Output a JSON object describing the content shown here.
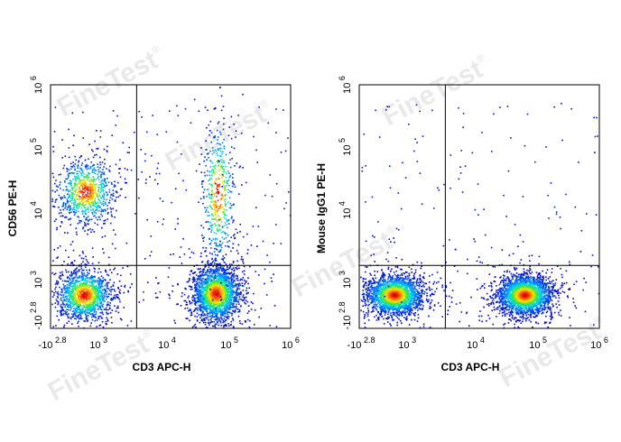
{
  "watermark": {
    "text": "FineTest",
    "mark": "®"
  },
  "chart_data": [
    {
      "type": "scatter",
      "style": "density-colored flow cytometry dot plot",
      "xlabel": "CD3 APC-H",
      "ylabel": "CD56 PE-H",
      "x_ticks": [
        {
          "base": "-10",
          "exp": "2.8"
        },
        {
          "base": "10",
          "exp": "3"
        },
        {
          "base": "10",
          "exp": "4"
        },
        {
          "base": "10",
          "exp": "5"
        },
        {
          "base": "10",
          "exp": "6"
        }
      ],
      "y_ticks": [
        {
          "base": "-10",
          "exp": "2.8"
        },
        {
          "base": "10",
          "exp": "3"
        },
        {
          "base": "10",
          "exp": "4"
        },
        {
          "base": "10",
          "exp": "5"
        },
        {
          "base": "10",
          "exp": "6"
        }
      ],
      "gate": {
        "x": 3600,
        "y": 1600
      },
      "populations": [
        {
          "x": 500,
          "y": 500,
          "n": 1400
        },
        {
          "x": 550,
          "y": 20000,
          "n": 850
        },
        {
          "x": 60000,
          "y": 550,
          "n": 2100
        },
        {
          "x": 65000,
          "y": 18000,
          "n": 500
        }
      ]
    },
    {
      "type": "scatter",
      "style": "density-colored flow cytometry dot plot",
      "xlabel": "CD3 APC-H",
      "ylabel": "Mouse IgG1 PE-H",
      "x_ticks": [
        {
          "base": "-10",
          "exp": "2.8"
        },
        {
          "base": "10",
          "exp": "3"
        },
        {
          "base": "10",
          "exp": "4"
        },
        {
          "base": "10",
          "exp": "5"
        },
        {
          "base": "10",
          "exp": "6"
        }
      ],
      "y_ticks": [
        {
          "base": "-10",
          "exp": "2.8"
        },
        {
          "base": "10",
          "exp": "3"
        },
        {
          "base": "10",
          "exp": "4"
        },
        {
          "base": "10",
          "exp": "5"
        },
        {
          "base": "10",
          "exp": "6"
        }
      ],
      "gate": {
        "x": 3600,
        "y": 1600
      },
      "populations": [
        {
          "x": 550,
          "y": 500,
          "n": 2100
        },
        {
          "x": 60000,
          "y": 500,
          "n": 2300
        }
      ]
    }
  ]
}
